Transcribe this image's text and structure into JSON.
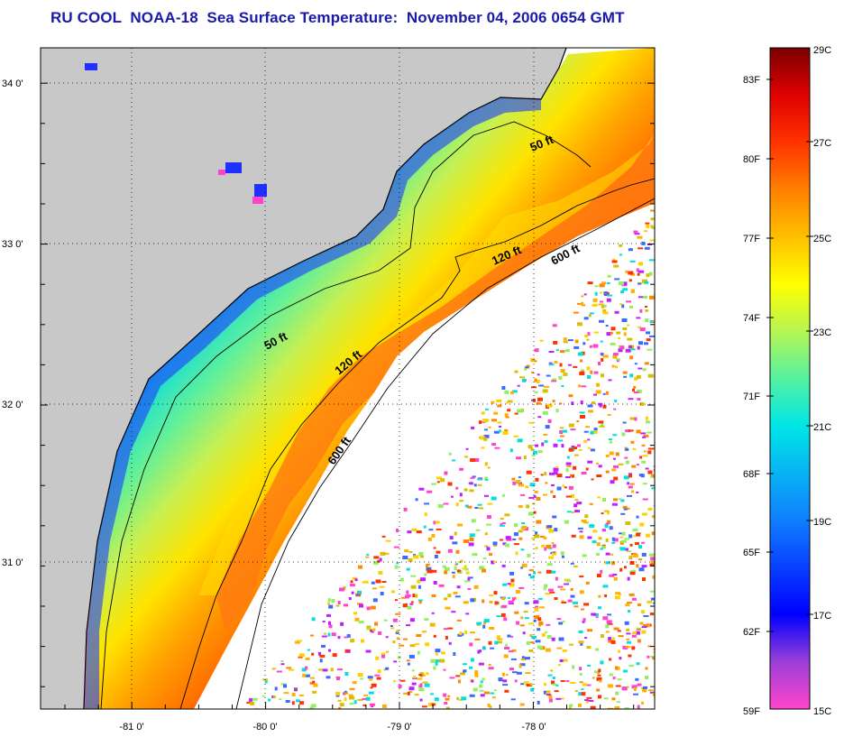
{
  "title": "RU COOL  NOAA-18  Sea Surface Temperature:  November 04, 2006 0654 GMT",
  "map": {
    "lat_ticks": [
      {
        "label": "34 0'"
      },
      {
        "label": "33 0'"
      },
      {
        "label": "32 0'"
      },
      {
        "label": "31 0'"
      }
    ],
    "lon_ticks": [
      {
        "label": "-81 0'"
      },
      {
        "label": "-80 0'"
      },
      {
        "label": "-79 0'"
      },
      {
        "label": "-78 0'"
      }
    ],
    "contour_labels": [
      {
        "text": "50 ft"
      },
      {
        "text": "120 ft"
      },
      {
        "text": "600 ft"
      },
      {
        "text": "50 ft"
      },
      {
        "text": "120 ft"
      },
      {
        "text": "600 ft"
      }
    ],
    "colors": {
      "land": "#c8c8c8",
      "frame": "#000000"
    }
  },
  "colorbar": {
    "fahrenheit_labels": [
      "83F",
      "80F",
      "77F",
      "74F",
      "71F",
      "68F",
      "65F",
      "62F",
      "59F"
    ],
    "celsius_labels": [
      "29C",
      "27C",
      "25C",
      "23C",
      "21C",
      "19C",
      "17C",
      "15C"
    ],
    "range_c": [
      15,
      29
    ],
    "stops": [
      {
        "c": 15,
        "color": "#ff44cc"
      },
      {
        "c": 16,
        "color": "#9b3fd6"
      },
      {
        "c": 17,
        "color": "#0000ff"
      },
      {
        "c": 19,
        "color": "#0f7fff"
      },
      {
        "c": 21,
        "color": "#00e6e6"
      },
      {
        "c": 22,
        "color": "#55f2a0"
      },
      {
        "c": 23,
        "color": "#b6f552"
      },
      {
        "c": 24,
        "color": "#ffff00"
      },
      {
        "c": 25,
        "color": "#ffbf00"
      },
      {
        "c": 26,
        "color": "#ff7f00"
      },
      {
        "c": 27,
        "color": "#ff3300"
      },
      {
        "c": 28,
        "color": "#e00000"
      },
      {
        "c": 29,
        "color": "#7a0000"
      }
    ]
  }
}
